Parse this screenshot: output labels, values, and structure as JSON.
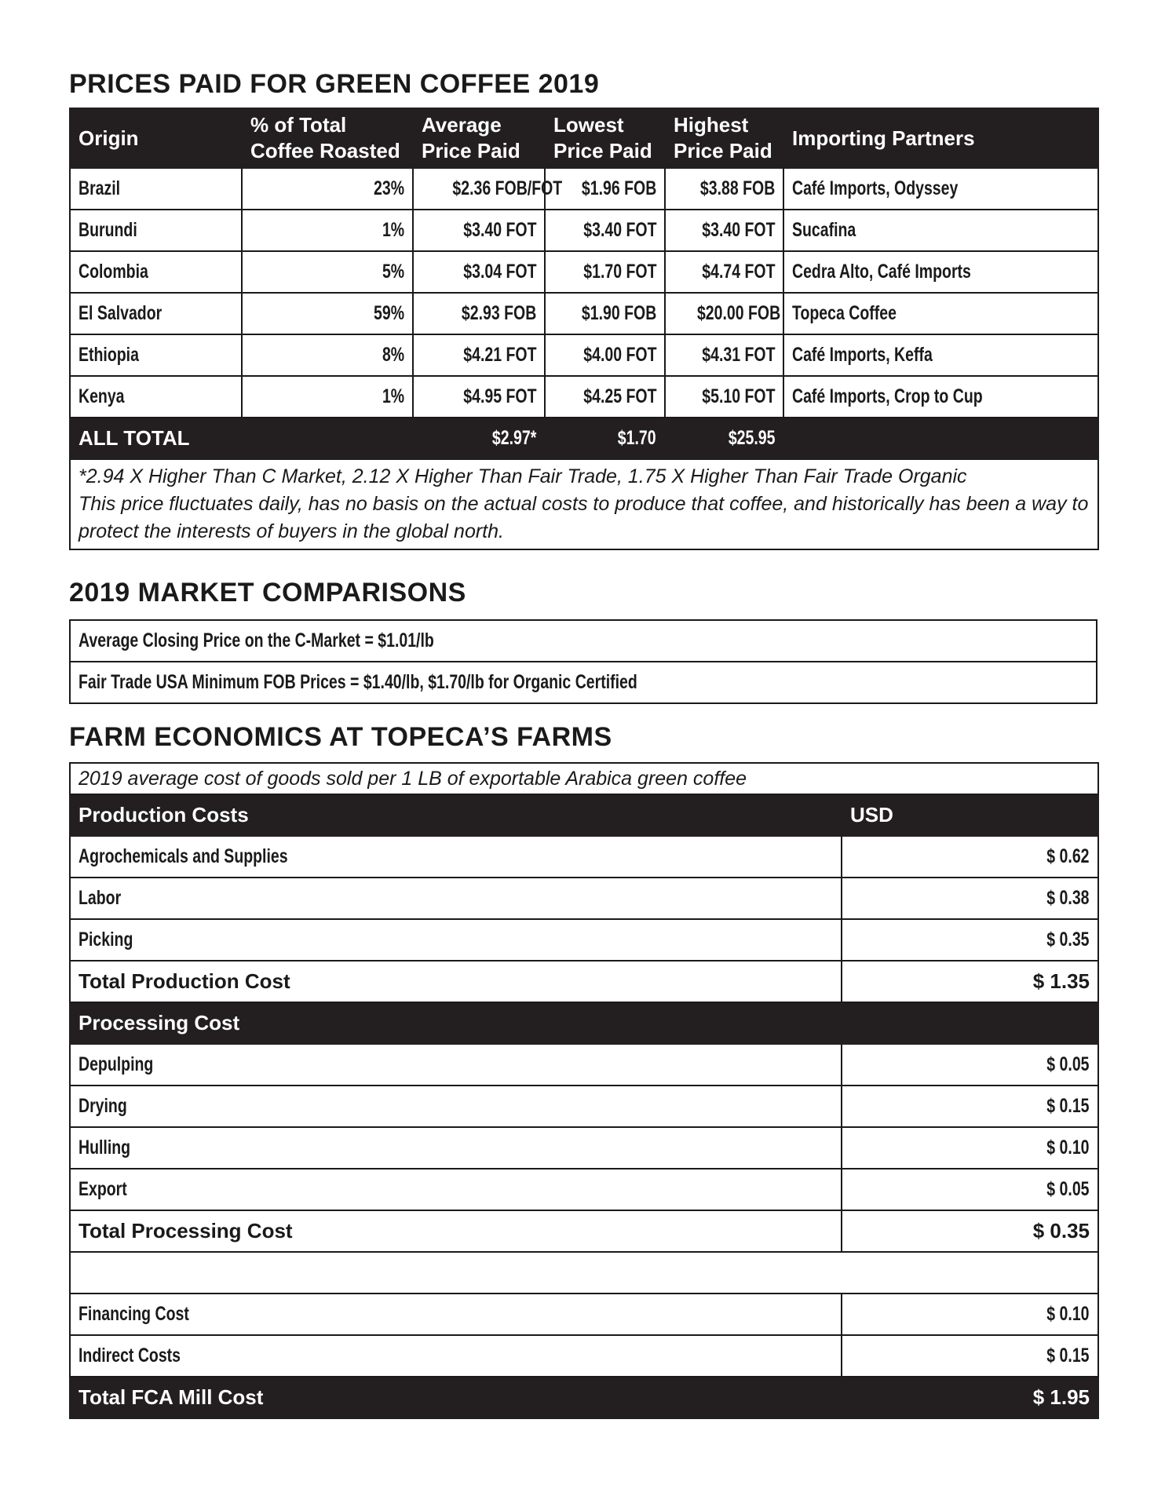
{
  "prices": {
    "title": "PRICES PAID FOR GREEN COFFEE 2019",
    "headers": [
      "Origin",
      "% of Total Coffee Roasted",
      "Average Price Paid",
      "Lowest Price Paid",
      "Highest Price Paid",
      "Importing Partners"
    ],
    "rows": [
      [
        "Brazil",
        "23%",
        "$2.36 FOB/FOT",
        "$1.96 FOB",
        "$3.88 FOB",
        "Café Imports, Odyssey"
      ],
      [
        "Burundi",
        "1%",
        "$3.40 FOT",
        "$3.40 FOT",
        "$3.40 FOT",
        "Sucafina"
      ],
      [
        "Colombia",
        "5%",
        "$3.04 FOT",
        "$1.70 FOT",
        "$4.74 FOT",
        "Cedra Alto, Café Imports"
      ],
      [
        "El Salvador",
        "59%",
        "$2.93 FOB",
        "$1.90 FOB",
        "$20.00 FOB",
        "Topeca Coffee"
      ],
      [
        "Ethiopia",
        "8%",
        "$4.21 FOT",
        "$4.00 FOT",
        "$4.31 FOT",
        "Café Imports, Keffa"
      ],
      [
        "Kenya",
        "1%",
        "$4.95 FOT",
        "$4.25 FOT",
        "$5.10 FOT",
        "Café Imports, Crop to Cup"
      ]
    ],
    "total": {
      "label": "ALL TOTAL",
      "average": "$2.97*",
      "lowest": "$1.70",
      "highest": "$25.95"
    },
    "note1": "*2.94 X Higher Than C Market, 2.12 X Higher Than Fair Trade, 1.75 X Higher Than Fair Trade Organic",
    "note2": "This price fluctuates daily, has no basis on the actual costs to produce that coffee, and historically has been a way to protect the interests of buyers in the global north."
  },
  "market": {
    "title": "2019 MARKET COMPARISONS",
    "rows": [
      "Average Closing Price on the C-Market = $1.01/lb",
      "Fair Trade USA Minimum FOB Prices = $1.40/lb, $1.70/lb for Organic Certified"
    ]
  },
  "farm": {
    "title": "FARM ECONOMICS AT TOPECA’S FARMS",
    "subtitle": "2019 average cost of goods sold per 1 LB of exportable Arabica green coffee",
    "production_header": "Production Costs",
    "usd_header": "USD",
    "production": [
      [
        "Agrochemicals and Supplies",
        "$ 0.62"
      ],
      [
        "Labor",
        "$ 0.38"
      ],
      [
        "Picking",
        "$ 0.35"
      ]
    ],
    "total_production": [
      "Total Production Cost",
      "$ 1.35"
    ],
    "processing_header": "Processing Cost",
    "processing": [
      [
        "Depulping",
        "$ 0.05"
      ],
      [
        "Drying",
        "$ 0.15"
      ],
      [
        "Hulling",
        "$ 0.10"
      ],
      [
        "Export",
        "$ 0.05"
      ]
    ],
    "total_processing": [
      "Total Processing Cost",
      "$ 0.35"
    ],
    "other": [
      [
        "Financing Cost",
        "$ 0.10"
      ],
      [
        "Indirect Costs",
        "$ 0.15"
      ]
    ],
    "total_fca": [
      "Total FCA Mill Cost",
      "$ 1.95"
    ]
  }
}
